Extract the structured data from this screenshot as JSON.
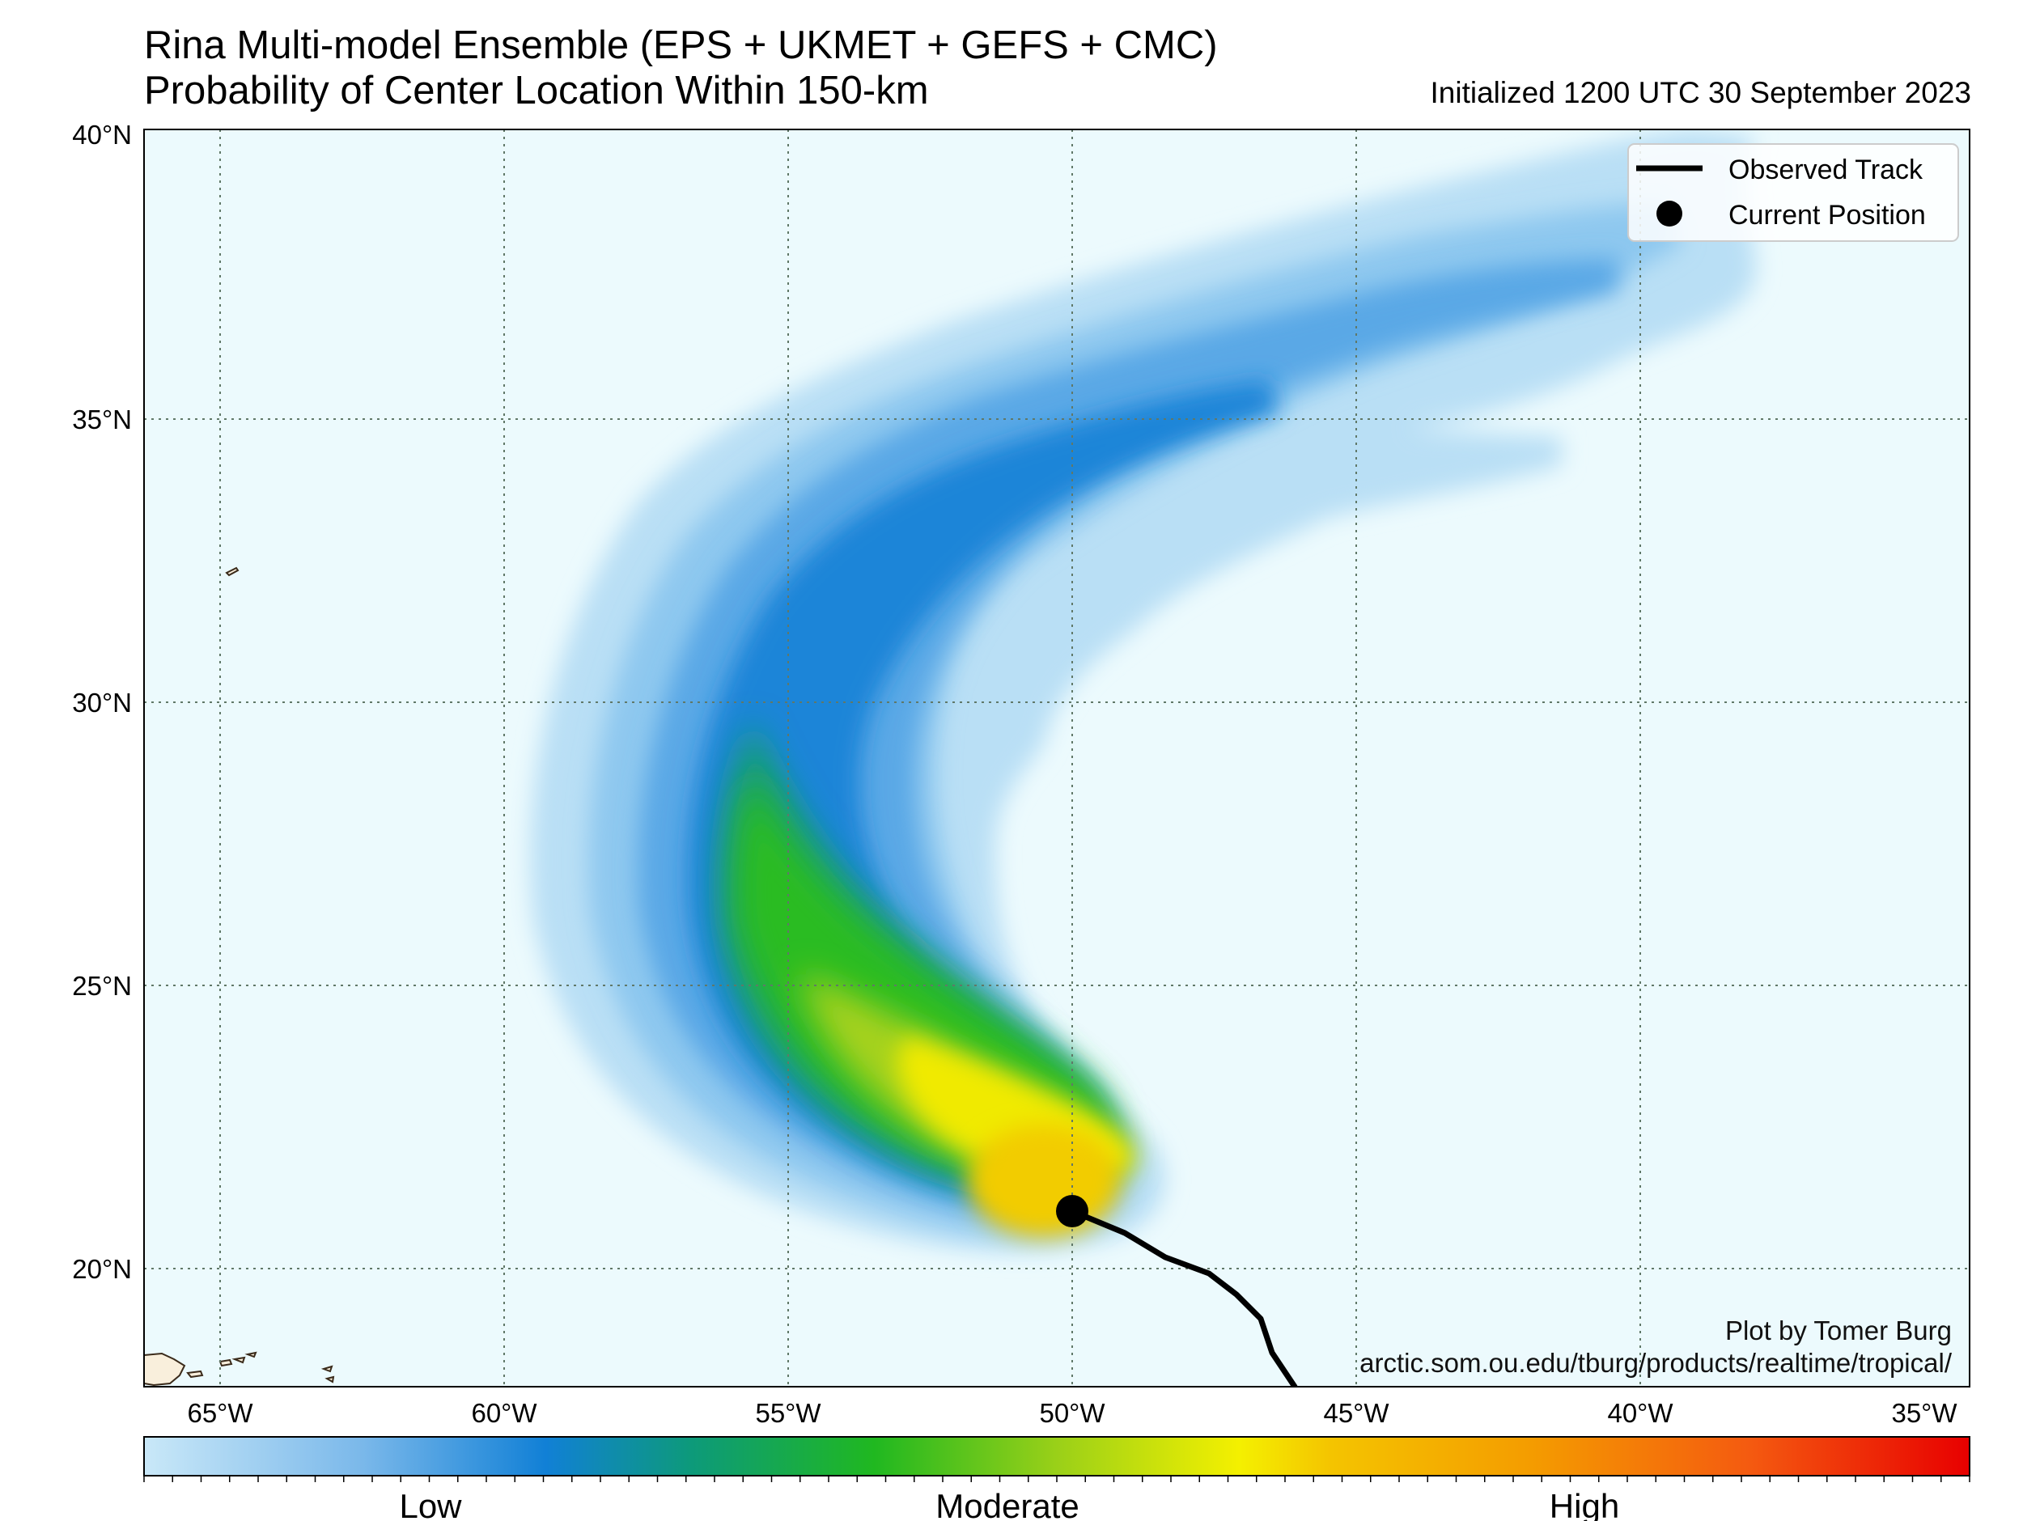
{
  "header": {
    "title_line1": "Rina Multi-model Ensemble (EPS + UKMET + GEFS + CMC)",
    "title_line2": "Probability of Center Location Within 150-km",
    "initialized": "Initialized 1200 UTC 30 September 2023"
  },
  "map": {
    "lat_labels": [
      "40°N",
      "35°N",
      "30°N",
      "25°N",
      "20°N"
    ],
    "lon_labels": [
      "65°W",
      "60°W",
      "55°W",
      "50°W",
      "45°W",
      "40°W",
      "35°W"
    ],
    "ocean_color": "#ecfafd",
    "land_color": "#f9efdc",
    "observed_track": [
      [
        -46.0,
        17.8
      ],
      [
        -46.4,
        18.4
      ],
      [
        -46.6,
        19.0
      ],
      [
        -47.0,
        19.4
      ],
      [
        -47.5,
        19.8
      ],
      [
        -48.3,
        20.2
      ],
      [
        -49.0,
        20.6
      ],
      [
        -50.0,
        21.0
      ]
    ],
    "current_position": {
      "lon": -50.0,
      "lat": 21.0
    }
  },
  "legend": {
    "items": [
      "Observed Track",
      "Current Position"
    ]
  },
  "credits": {
    "author": "Plot by Tomer Burg",
    "url": "arctic.som.ou.edu/tburg/products/realtime/tropical/"
  },
  "colorbar": {
    "labels": [
      "Low",
      "Moderate",
      "High"
    ],
    "colors": [
      "#c9e8f8",
      "#7ab8ea",
      "#1180d6",
      "#0d9a7a",
      "#20b820",
      "#9ad018",
      "#f4f000",
      "#f4c400",
      "#f49c00",
      "#f45a10",
      "#e80000"
    ]
  }
}
